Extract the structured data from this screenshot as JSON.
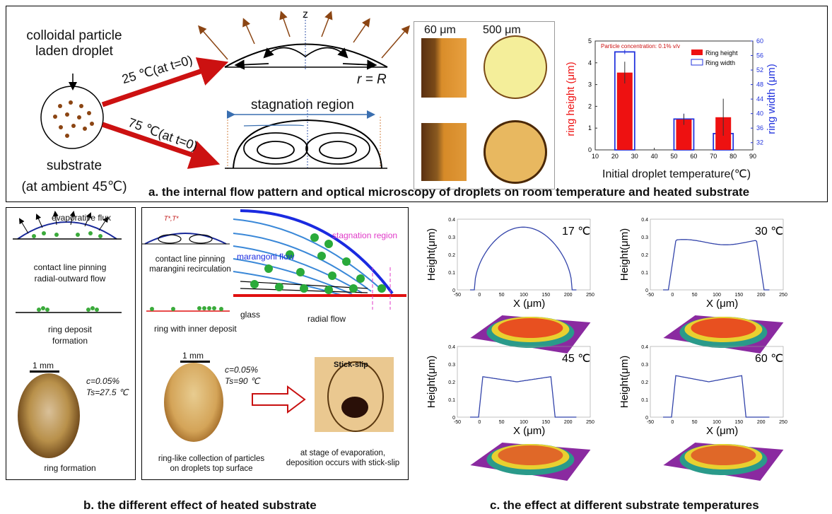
{
  "panel_a": {
    "caption": "a. the internal flow pattern and optical microscopy of droplets on room temperature and heated substrate",
    "droplet_label_1": "colloidal particle",
    "droplet_label_2": "laden droplet",
    "substrate_label": "substrate",
    "ambient_label": "(at ambient 45℃)",
    "temp_25_label": "25 ℃(at t=0)",
    "temp_75_label": "75 ℃(at t=0)",
    "z_label": "z",
    "r_label": "r = R",
    "stagnation_label": "stagnation region",
    "scale_60": "60 μm",
    "scale_500": "500 μm",
    "colors": {
      "arrow_red": "#cc1111",
      "flux_brown": "#8b4513",
      "bar_red": "#ee1111",
      "ring_blue": "#2233dd"
    }
  },
  "chart_data": {
    "type": "bar",
    "title": "Particle concentration: 0.1% v/v",
    "xlabel": "Initial droplet temperature(℃)",
    "ylabel": "ring height (μm)",
    "y2label": "ring width (μm)",
    "xlim": [
      10,
      90
    ],
    "ylim": [
      0,
      5
    ],
    "y2lim": [
      30,
      60
    ],
    "x_ticks": [
      "10",
      "20",
      "30",
      "40",
      "50",
      "60",
      "70",
      "80",
      "90"
    ],
    "y_ticks": [
      "0",
      "1",
      "2",
      "3",
      "4",
      "5"
    ],
    "y2_ticks": [
      "32",
      "36",
      "40",
      "44",
      "48",
      "52",
      "56",
      "60"
    ],
    "series": [
      {
        "name": "Ring height",
        "x": [
          25,
          55,
          75
        ],
        "values": [
          3.55,
          1.4,
          1.5
        ],
        "err": [
          0.5,
          0.25,
          0.85
        ]
      },
      {
        "name": "Ring width",
        "x": [
          25,
          55,
          75
        ],
        "values": [
          57.0,
          38.5,
          34.5
        ],
        "err": [
          0.6,
          1.5,
          2.0
        ]
      }
    ]
  },
  "panel_b": {
    "caption": "b. the different effect of heated substrate",
    "evap_flux": "evaporative flux",
    "pinning_1": "contact line pinning",
    "pinning_2": "radial-outward flow",
    "ring_deposit_1": "ring deposit",
    "ring_deposit_2": "formation",
    "scale_1mm_a": "1 mm",
    "c_a": "c=0.05%",
    "ts_a": "Ts=27.5 ℃",
    "ring_formation": "ring formation",
    "temp_sym": "T*,T*",
    "marangini_1": "contact line pinning",
    "marangini_2": "marangini recirculation",
    "marangoni_flow": "marangoni flow",
    "stagnation": "stagnation region",
    "glass": "glass",
    "radial_flow": "radial flow",
    "ring_inner": "ring with inner deposit",
    "scale_1mm_b": "1 mm",
    "c_b": "c=0.05%",
    "ts_b": "Ts=90 ℃",
    "stick_slip": "Stick-slip",
    "ring_like_1": "ring-like collection of particles",
    "ring_like_2": "on droplets top surface",
    "stage_1": "at stage of evaporation,",
    "stage_2": "deposition occurs with stick-slip"
  },
  "panel_c": {
    "caption": "c. the effect at different substrate temperatures",
    "ylabel": "Height(μm)",
    "xlabel": "X (μm)",
    "plots": [
      {
        "temp": "17 ℃"
      },
      {
        "temp": "30 ℃"
      },
      {
        "temp": "45 ℃"
      },
      {
        "temp": "60 ℃"
      }
    ],
    "x_ticks": [
      "-50",
      "0",
      "50",
      "100",
      "150",
      "200",
      "250"
    ],
    "y_ticks": [
      "0",
      "0.1",
      "0.2",
      "0.3",
      "0.4"
    ]
  }
}
